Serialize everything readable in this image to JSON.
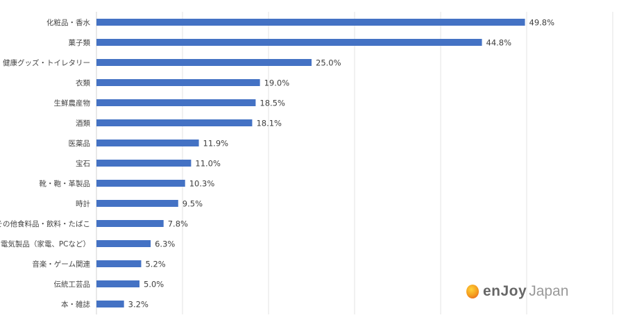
{
  "chart_data": {
    "type": "bar",
    "orientation": "horizontal",
    "categories": [
      "化粧品・香水",
      "菓子類",
      "健康グッズ・トイレタリー",
      "衣類",
      "生鮮農産物",
      "酒類",
      "医薬品",
      "宝石",
      "靴・鞄・革製品",
      "時計",
      "その他食料品・飲料・たばこ",
      "電気製品（家電、PCなど）",
      "音楽・ゲーム関連",
      "伝統工芸品",
      "本・雑誌"
    ],
    "values": [
      49.8,
      44.8,
      25.0,
      19.0,
      18.5,
      18.1,
      11.9,
      11.0,
      10.3,
      9.5,
      7.8,
      6.3,
      5.2,
      5.0,
      3.2
    ],
    "data_labels": [
      "49.8%",
      "44.8%",
      "25.0%",
      "19.0%",
      "18.5%",
      "18.1%",
      "11.9%",
      "11.0%",
      "10.3%",
      "9.5%",
      "7.8%",
      "6.3%",
      "5.2%",
      "5.0%",
      "3.2%"
    ],
    "xlim": [
      0,
      60
    ],
    "grid": true,
    "bar_color": "#4472c4"
  },
  "logo": {
    "text1": "enJoy",
    "text2": "Japan"
  }
}
